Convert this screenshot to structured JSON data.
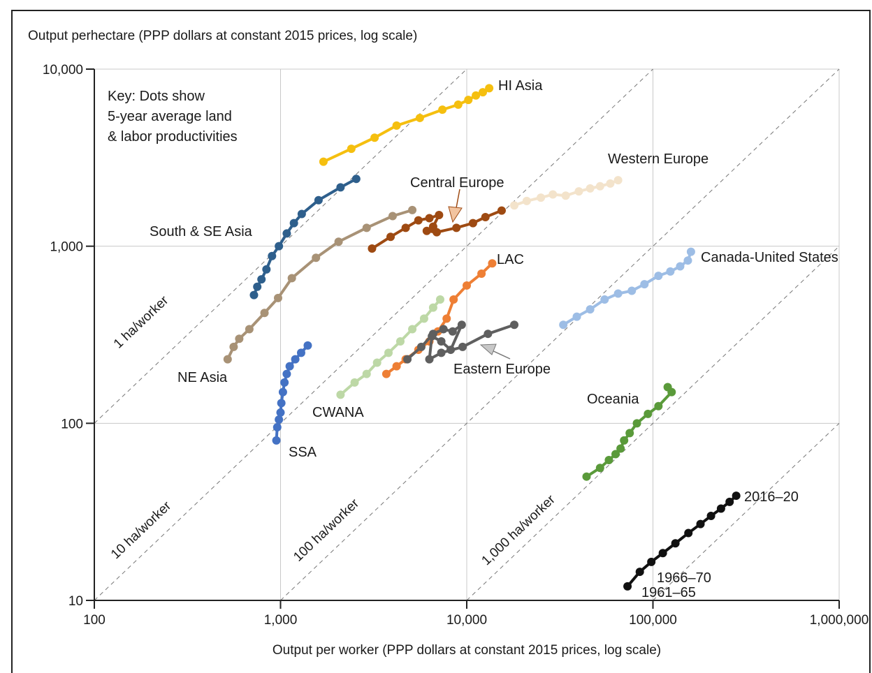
{
  "chart_data": {
    "type": "line",
    "ylabel": "Output perhectare (PPP dollars at constant 2015 prices, log scale)",
    "xlabel": "Output per worker (PPP dollars at constant 2015 prices, log scale)",
    "x_scale": "log",
    "y_scale": "log",
    "xlim": [
      100,
      1000000
    ],
    "ylim": [
      10,
      10000
    ],
    "xticks": [
      100,
      1000,
      10000,
      100000,
      1000000
    ],
    "xtick_labels": [
      "100",
      "1,000",
      "10,000",
      "100,000",
      "1,000,000"
    ],
    "yticks": [
      10,
      100,
      1000,
      10000
    ],
    "ytick_labels": [
      "10",
      "100",
      "1,000",
      "10,000"
    ],
    "grid": true,
    "key_lines": [
      "Key: Dots show",
      "5-year average land",
      "& labor productivities"
    ],
    "reference_lines": [
      {
        "label": "1 ha/worker",
        "ha_per_worker": 1
      },
      {
        "label": "10 ha/worker",
        "ha_per_worker": 10
      },
      {
        "label": "100 ha/worker",
        "ha_per_worker": 100
      },
      {
        "label": "1,000 ha/worker",
        "ha_per_worker": 1000
      }
    ],
    "series": [
      {
        "name": "HI Asia",
        "color": "#f5bf0f",
        "x": [
          1700,
          2400,
          3200,
          4200,
          5600,
          7400,
          9000,
          10200,
          11200,
          12200,
          13200
        ],
        "y": [
          3000,
          3550,
          4100,
          4800,
          5300,
          5900,
          6300,
          6700,
          7100,
          7400,
          7800
        ]
      },
      {
        "name": "South & SE Asia",
        "color": "#2e5f8c",
        "x": [
          720,
          750,
          790,
          840,
          900,
          980,
          1080,
          1180,
          1300,
          1600,
          2100,
          2550
        ],
        "y": [
          530,
          590,
          650,
          740,
          880,
          1000,
          1180,
          1350,
          1520,
          1820,
          2150,
          2400
        ]
      },
      {
        "name": "NE Asia",
        "color": "#a89276",
        "x": [
          520,
          560,
          600,
          680,
          820,
          970,
          1150,
          1550,
          2050,
          2900,
          4000,
          5100
        ],
        "y": [
          230,
          270,
          300,
          340,
          420,
          510,
          660,
          860,
          1060,
          1270,
          1480,
          1600
        ]
      },
      {
        "name": "Central Europe",
        "color": "#9e4a12",
        "x": [
          3100,
          3900,
          4700,
          5500,
          6300,
          7100,
          6600,
          6100,
          6900,
          8800,
          10800,
          12600,
          15400
        ],
        "y": [
          970,
          1130,
          1270,
          1400,
          1440,
          1500,
          1290,
          1220,
          1200,
          1270,
          1350,
          1460,
          1590
        ]
      },
      {
        "name": "Western Europe",
        "color": "#f3e3cb",
        "x": [
          18000,
          21000,
          25000,
          29000,
          34000,
          40000,
          46000,
          52000,
          59000,
          65000
        ],
        "y": [
          1700,
          1800,
          1880,
          1960,
          1930,
          2040,
          2120,
          2180,
          2260,
          2360
        ]
      },
      {
        "name": "LAC",
        "color": "#ee7f35",
        "x": [
          3700,
          4200,
          4700,
          5500,
          6300,
          7000,
          7800,
          8500,
          10000,
          12000,
          13700
        ],
        "y": [
          190,
          210,
          230,
          260,
          290,
          330,
          390,
          500,
          600,
          700,
          800
        ]
      },
      {
        "name": "CWANA",
        "color": "#bdd8a6",
        "x": [
          2100,
          2500,
          2900,
          3300,
          3800,
          4400,
          5100,
          5900,
          6600,
          7200
        ],
        "y": [
          145,
          170,
          190,
          220,
          250,
          290,
          340,
          390,
          450,
          500
        ]
      },
      {
        "name": "Eastern Europe",
        "color": "#5f5f5f",
        "x": [
          4800,
          5700,
          6600,
          7500,
          8400,
          9400,
          8200,
          7300,
          6500,
          6300,
          7300,
          9500,
          13000,
          18000
        ],
        "y": [
          230,
          270,
          320,
          340,
          330,
          360,
          260,
          290,
          310,
          230,
          250,
          270,
          320,
          360
        ]
      },
      {
        "name": "SSA",
        "color": "#4472c4",
        "x": [
          950,
          960,
          980,
          1000,
          1010,
          1030,
          1050,
          1080,
          1120,
          1200,
          1290,
          1400
        ],
        "y": [
          80,
          95,
          105,
          115,
          130,
          150,
          170,
          190,
          210,
          230,
          250,
          275
        ]
      },
      {
        "name": "Canada-United States",
        "color": "#9dbde5",
        "x": [
          33000,
          39000,
          46000,
          55000,
          65000,
          77000,
          90000,
          107000,
          124000,
          140000,
          154000,
          160000
        ],
        "y": [
          360,
          400,
          440,
          500,
          540,
          560,
          610,
          680,
          720,
          770,
          830,
          930
        ]
      },
      {
        "name": "Oceania",
        "color": "#5a9a3a",
        "x": [
          44000,
          52000,
          58000,
          63000,
          67000,
          70000,
          75000,
          82000,
          94000,
          107000,
          126000,
          120000
        ],
        "y": [
          50,
          56,
          62,
          67,
          72,
          80,
          88,
          100,
          113,
          125,
          150,
          160
        ]
      },
      {
        "name": "World (1961–65 to 2016–20)",
        "color": "#111111",
        "x": [
          73000,
          85000,
          98000,
          113000,
          132000,
          155000,
          180000,
          205000,
          232000,
          258000,
          280000
        ],
        "y": [
          12,
          14.5,
          16.5,
          18.5,
          21,
          24,
          27,
          30,
          33,
          36,
          39
        ]
      }
    ],
    "labels": [
      {
        "text": "HI Asia",
        "series": "HI Asia"
      },
      {
        "text": "South & SE Asia",
        "series": "South & SE Asia"
      },
      {
        "text": "NE Asia",
        "series": "NE Asia"
      },
      {
        "text": "Central Europe",
        "series": "Central Europe"
      },
      {
        "text": "Western Europe",
        "series": "Western Europe"
      },
      {
        "text": "LAC",
        "series": "LAC"
      },
      {
        "text": "CWANA",
        "series": "CWANA"
      },
      {
        "text": "Eastern Europe",
        "series": "Eastern Europe"
      },
      {
        "text": "SSA",
        "series": "SSA"
      },
      {
        "text": "Canada-United States",
        "series": "Canada-United States"
      },
      {
        "text": "Oceania",
        "series": "Oceania"
      },
      {
        "text": "2016–20",
        "series": "World"
      },
      {
        "text": "1966–70",
        "series": "World"
      },
      {
        "text": "1961–65",
        "series": "World"
      }
    ]
  }
}
